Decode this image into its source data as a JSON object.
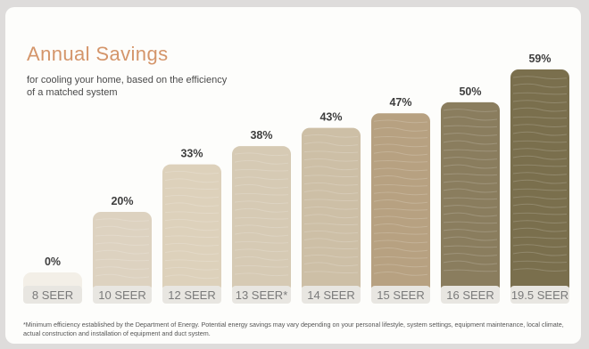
{
  "colors": {
    "title": "#d4956a",
    "percent_text": "#3e3e3e",
    "label_text": "#7a7a7a",
    "label_pill": "#e8e6e1",
    "bars": [
      "#f3efe7",
      "#ddd2c0",
      "#ddd1bb",
      "#d6cab4",
      "#cdbfa6",
      "#b7a181",
      "#8a7d5e",
      "#7a6f4d"
    ]
  },
  "chart_data": {
    "type": "bar",
    "title": "Annual Savings",
    "subtitle": "for cooling your home, based on the efficiency of a matched system",
    "categories": [
      "8 SEER",
      "10 SEER",
      "12 SEER",
      "13 SEER*",
      "14 SEER",
      "15 SEER",
      "16 SEER",
      "19.5 SEER"
    ],
    "values": [
      0,
      20,
      33,
      38,
      43,
      47,
      50,
      59
    ],
    "value_labels": [
      "0%",
      "20%",
      "33%",
      "38%",
      "43%",
      "47%",
      "50%",
      "59%"
    ],
    "ylim": [
      0,
      59
    ],
    "grid": false,
    "legend": "none"
  },
  "footnote": "*Minimum efficiency established by the Department of Energy. Potential energy savings may vary depending on your personal lifestyle, system settings, equipment maintenance, local climate, actual construction and installation of equipment and duct system."
}
